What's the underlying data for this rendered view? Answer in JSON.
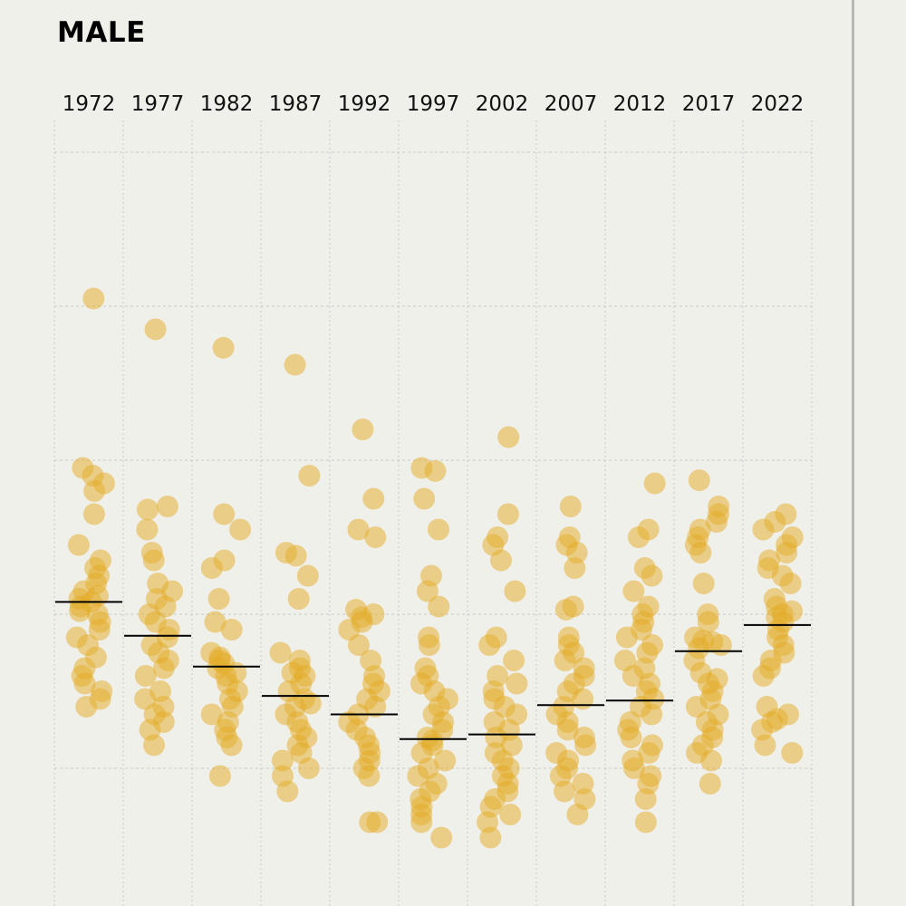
{
  "title": "MALE",
  "chart_data": {
    "type": "scatter",
    "title": "MALE",
    "categories": [
      "1972",
      "1977",
      "1982",
      "1987",
      "1992",
      "1997",
      "2002",
      "2007",
      "2012",
      "2017",
      "2022"
    ],
    "ylim": [
      0,
      5
    ],
    "grid": true,
    "yticks": [
      1,
      2,
      3,
      4,
      5
    ],
    "tick_labels_shown": false,
    "point_color": "#e3ac25",
    "mean_line_color": "#000000",
    "series": [
      {
        "category": "1972",
        "mean": 2.08,
        "values": [
          4.05,
          2.95,
          2.9,
          2.85,
          2.8,
          2.65,
          2.45,
          2.35,
          2.3,
          2.25,
          2.2,
          2.15,
          2.12,
          2.1,
          2.08,
          2.05,
          2.02,
          2.0,
          1.95,
          1.9,
          1.85,
          1.8,
          1.72,
          1.65,
          1.6,
          1.55,
          1.5,
          1.45,
          1.4
        ]
      },
      {
        "category": "1977",
        "mean": 1.86,
        "values": [
          3.85,
          2.7,
          2.68,
          2.55,
          2.4,
          2.35,
          2.2,
          2.15,
          2.1,
          2.05,
          2.0,
          1.95,
          1.9,
          1.85,
          1.8,
          1.75,
          1.7,
          1.65,
          1.6,
          1.5,
          1.45,
          1.4,
          1.35,
          1.3,
          1.25,
          1.15
        ]
      },
      {
        "category": "1982",
        "mean": 1.66,
        "values": [
          3.73,
          2.65,
          2.55,
          2.35,
          2.3,
          2.1,
          1.95,
          1.9,
          1.75,
          1.72,
          1.7,
          1.68,
          1.65,
          1.62,
          1.6,
          1.55,
          1.5,
          1.45,
          1.4,
          1.35,
          1.3,
          1.25,
          1.2,
          1.15,
          0.95
        ]
      },
      {
        "category": "1987",
        "mean": 1.47,
        "values": [
          3.62,
          2.9,
          2.4,
          2.38,
          2.25,
          2.1,
          1.75,
          1.7,
          1.65,
          1.62,
          1.6,
          1.55,
          1.5,
          1.45,
          1.42,
          1.4,
          1.35,
          1.3,
          1.25,
          1.2,
          1.15,
          1.1,
          1.05,
          1.0,
          0.95,
          0.85
        ]
      },
      {
        "category": "1992",
        "mean": 1.35,
        "values": [
          3.2,
          2.75,
          2.55,
          2.5,
          2.03,
          2.0,
          1.98,
          1.95,
          1.9,
          1.8,
          1.7,
          1.6,
          1.55,
          1.5,
          1.45,
          1.4,
          1.35,
          1.3,
          1.25,
          1.2,
          1.15,
          1.1,
          1.05,
          1.0,
          0.95,
          0.65,
          0.65
        ]
      },
      {
        "category": "1997",
        "mean": 1.19,
        "values": [
          2.95,
          2.93,
          2.75,
          2.55,
          2.25,
          2.15,
          2.05,
          1.85,
          1.8,
          1.65,
          1.6,
          1.55,
          1.5,
          1.45,
          1.4,
          1.35,
          1.3,
          1.25,
          1.2,
          1.18,
          1.15,
          1.1,
          1.05,
          1.0,
          0.95,
          0.9,
          0.85,
          0.8,
          0.75,
          0.7,
          0.65,
          0.55
        ]
      },
      {
        "category": "2002",
        "mean": 1.22,
        "values": [
          3.15,
          2.65,
          2.5,
          2.45,
          2.35,
          2.15,
          1.85,
          1.8,
          1.7,
          1.6,
          1.55,
          1.5,
          1.45,
          1.4,
          1.35,
          1.3,
          1.25,
          1.2,
          1.15,
          1.1,
          1.05,
          1.0,
          0.95,
          0.9,
          0.85,
          0.8,
          0.75,
          0.7,
          0.65,
          0.55
        ]
      },
      {
        "category": "2007",
        "mean": 1.41,
        "values": [
          2.7,
          2.5,
          2.45,
          2.4,
          2.3,
          2.05,
          2.03,
          1.85,
          1.8,
          1.75,
          1.7,
          1.65,
          1.6,
          1.55,
          1.5,
          1.45,
          1.4,
          1.35,
          1.3,
          1.25,
          1.2,
          1.15,
          1.1,
          1.05,
          1.0,
          0.95,
          0.9,
          0.85,
          0.8,
          0.7
        ]
      },
      {
        "category": "2012",
        "mean": 1.44,
        "values": [
          2.85,
          2.55,
          2.5,
          2.3,
          2.25,
          2.15,
          2.05,
          2.0,
          1.95,
          1.9,
          1.85,
          1.8,
          1.75,
          1.7,
          1.65,
          1.6,
          1.55,
          1.5,
          1.45,
          1.4,
          1.35,
          1.3,
          1.25,
          1.2,
          1.15,
          1.1,
          1.05,
          1.0,
          0.95,
          0.9,
          0.8,
          0.65
        ]
      },
      {
        "category": "2017",
        "mean": 1.76,
        "values": [
          2.87,
          2.7,
          2.65,
          2.6,
          2.55,
          2.5,
          2.45,
          2.4,
          2.2,
          2.0,
          1.95,
          1.85,
          1.83,
          1.82,
          1.8,
          1.78,
          1.7,
          1.62,
          1.58,
          1.55,
          1.5,
          1.45,
          1.4,
          1.35,
          1.3,
          1.25,
          1.2,
          1.15,
          1.1,
          1.05,
          0.9
        ]
      },
      {
        "category": "2022",
        "mean": 1.93,
        "values": [
          2.65,
          2.6,
          2.55,
          2.5,
          2.45,
          2.4,
          2.35,
          2.3,
          2.25,
          2.2,
          2.1,
          2.05,
          2.02,
          2.0,
          1.98,
          1.95,
          1.9,
          1.85,
          1.8,
          1.75,
          1.7,
          1.65,
          1.6,
          1.4,
          1.35,
          1.32,
          1.3,
          1.25,
          1.15,
          1.1
        ]
      }
    ]
  }
}
